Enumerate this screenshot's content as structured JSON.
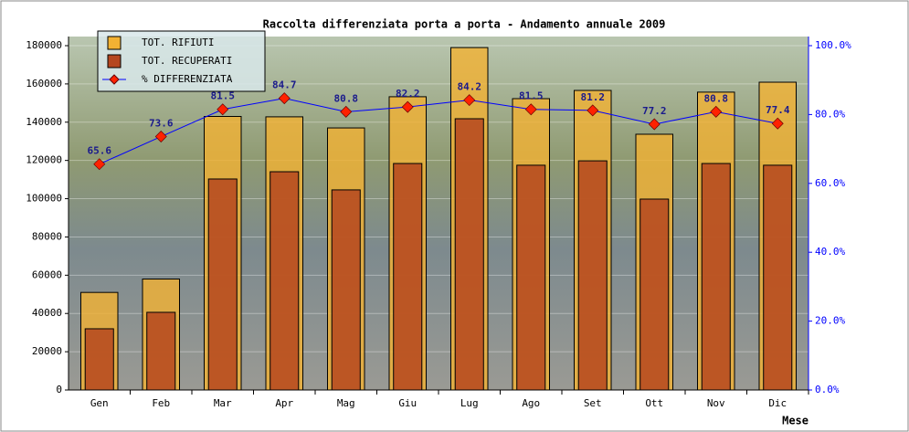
{
  "chart_data": {
    "type": "bar",
    "title": "Raccolta differenziata porta a porta - Andamento annuale 2009",
    "x_label": "Mese",
    "categories": [
      "Gen",
      "Feb",
      "Mar",
      "Apr",
      "Mag",
      "Giu",
      "Lug",
      "Ago",
      "Set",
      "Ott",
      "Nov",
      "Dic"
    ],
    "series": [
      {
        "name": "TOT. RIFIUTI",
        "color": "#f2b233",
        "values": [
          51000,
          58000,
          143000,
          142800,
          137000,
          153300,
          179000,
          152300,
          156600,
          133700,
          155700,
          160900
        ]
      },
      {
        "name": "TOT. RECUPERATI",
        "color": "#b5471f",
        "values": [
          32000,
          40600,
          110300,
          114100,
          104600,
          118400,
          141800,
          117500,
          119800,
          99800,
          118400,
          117500
        ]
      },
      {
        "name": "% DIFFERENZIATA",
        "color": "#0000ff",
        "marker_color": "#ff2200",
        "axis": "y2",
        "values": [
          65.6,
          73.6,
          81.5,
          84.7,
          80.8,
          82.2,
          84.2,
          81.5,
          81.2,
          77.2,
          80.8,
          77.4
        ]
      }
    ],
    "ylim": [
      0,
      180000
    ],
    "yticks": [
      0,
      20000,
      40000,
      60000,
      80000,
      100000,
      120000,
      140000,
      160000,
      180000
    ],
    "y2lim": [
      0,
      100
    ],
    "y2ticks": [
      {
        "value": 0,
        "label": "0.0%"
      },
      {
        "value": 20,
        "label": "20.0%"
      },
      {
        "value": 40,
        "label": "40.0%"
      },
      {
        "value": 60,
        "label": "60.0%"
      },
      {
        "value": 80,
        "label": "80.0%"
      },
      {
        "value": 100,
        "label": "100.0%"
      }
    ],
    "grid": true,
    "legend": "top-left"
  }
}
